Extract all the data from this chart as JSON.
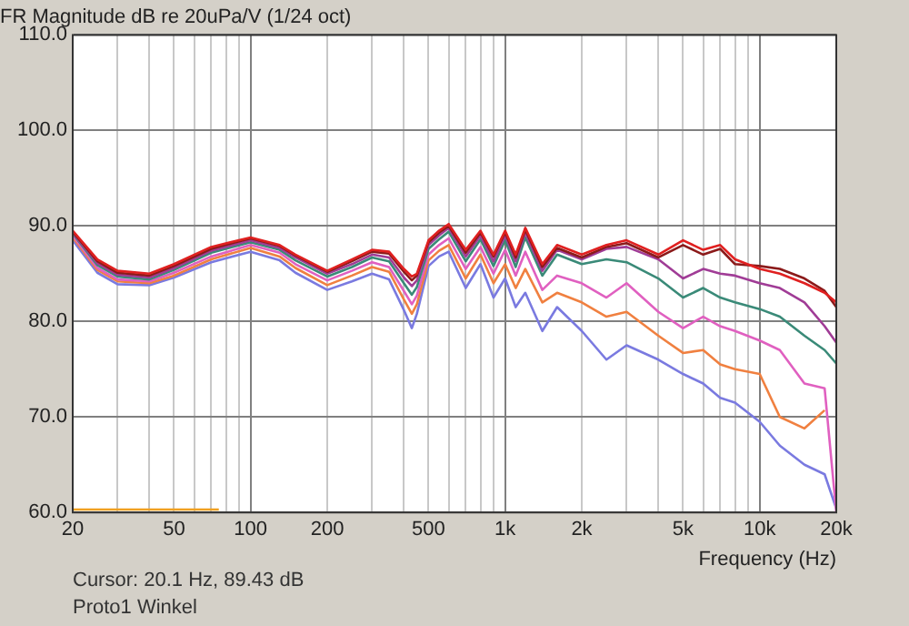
{
  "chart_data": {
    "type": "line",
    "title": "FR Magnitude dB re 20uPa/V (1/24 oct)",
    "xlabel": "Frequency (Hz)",
    "annotations": [
      "Cursor: 20.1 Hz, 89.43 dB",
      "Proto1 Winkel"
    ],
    "log": "x",
    "grid": true,
    "xlim": [
      20,
      20000
    ],
    "ylim": [
      60,
      110
    ],
    "xticks": [
      20,
      {
        "value": 30,
        "label": null
      },
      {
        "value": 40,
        "label": null
      },
      50,
      {
        "value": 60,
        "label": null
      },
      {
        "value": 70,
        "label": null
      },
      {
        "value": 80,
        "label": null
      },
      {
        "value": 90,
        "label": null
      },
      100,
      200,
      {
        "value": 300,
        "label": null
      },
      {
        "value": 400,
        "label": null
      },
      500,
      {
        "value": 600,
        "label": null
      },
      {
        "value": 700,
        "label": null
      },
      {
        "value": 800,
        "label": null
      },
      {
        "value": 900,
        "label": null
      },
      {
        "value": 1000,
        "label": "1k"
      },
      {
        "value": 2000,
        "label": "2k"
      },
      {
        "value": 3000,
        "label": null
      },
      {
        "value": 4000,
        "label": null
      },
      {
        "value": 5000,
        "label": "5k"
      },
      {
        "value": 6000,
        "label": null
      },
      {
        "value": 7000,
        "label": null
      },
      {
        "value": 8000,
        "label": null
      },
      {
        "value": 9000,
        "label": null
      },
      {
        "value": 10000,
        "label": "10k"
      },
      {
        "value": 20000,
        "label": "20k"
      }
    ],
    "yticks": [
      {
        "value": 60,
        "label": "60.0"
      },
      {
        "value": 70,
        "label": "70.0"
      },
      {
        "value": 80,
        "label": "80.0"
      },
      {
        "value": 90,
        "label": "90.0"
      },
      {
        "value": 100,
        "label": "100.0"
      },
      {
        "value": 110,
        "label": "110.0"
      }
    ],
    "x": [
      20,
      25,
      30,
      40,
      50,
      70,
      100,
      130,
      150,
      200,
      250,
      300,
      350,
      400,
      430,
      450,
      500,
      550,
      600,
      700,
      800,
      900,
      1000,
      1100,
      1200,
      1400,
      1600,
      2000,
      2500,
      3000,
      4000,
      5000,
      6000,
      7000,
      8000,
      10000,
      12000,
      15000,
      18000,
      20000
    ],
    "series": [
      {
        "color": "#e02020",
        "values": [
          89.5,
          86.5,
          85.3,
          85,
          86,
          87.8,
          88.8,
          88,
          87,
          85.3,
          86.5,
          87.5,
          87.3,
          85.5,
          84.7,
          85,
          88.5,
          89.5,
          90.2,
          87.5,
          89.5,
          87,
          89.5,
          87,
          89.8,
          86,
          88,
          87,
          88,
          88.5,
          87,
          88.5,
          87.5,
          88,
          86.5,
          85.5,
          85,
          84,
          83,
          82
        ]
      },
      {
        "color": "#8b1a1a",
        "values": [
          89.4,
          86.3,
          85.1,
          84.8,
          85.8,
          87.6,
          88.7,
          87.9,
          86.9,
          85.2,
          86.3,
          87.3,
          87.1,
          85.2,
          84.3,
          84.8,
          88.3,
          89.3,
          90,
          87.2,
          89.3,
          86.8,
          89.3,
          86.7,
          89.6,
          85.7,
          87.7,
          86.7,
          87.8,
          88.2,
          86.7,
          88,
          87,
          87.6,
          86,
          85.8,
          85.5,
          84.5,
          83.2,
          81.5
        ]
      },
      {
        "color": "#a03c96",
        "values": [
          89.3,
          86.1,
          84.9,
          84.6,
          85.6,
          87.4,
          88.5,
          87.7,
          86.7,
          85,
          86,
          87,
          86.7,
          84.6,
          83.7,
          84.3,
          88,
          89,
          89.8,
          86.8,
          89,
          86.3,
          89,
          86.3,
          89.3,
          85.3,
          87.5,
          86.5,
          87.6,
          87.8,
          86.5,
          84.5,
          85.5,
          85,
          84.8,
          84,
          83.5,
          82,
          79.5,
          77.8
        ]
      },
      {
        "color": "#3a8a78",
        "values": [
          89.2,
          85.9,
          84.7,
          84.4,
          85.4,
          87.2,
          88.3,
          87.5,
          86.4,
          84.7,
          85.7,
          86.7,
          86.3,
          84,
          82.8,
          83.6,
          87.6,
          88.6,
          89.4,
          86.3,
          88.6,
          85.8,
          88.5,
          85.7,
          88.8,
          84.8,
          87,
          86,
          86.5,
          86.2,
          84.5,
          82.5,
          83.5,
          82.5,
          82,
          81.3,
          80.5,
          78.5,
          77,
          75.6
        ]
      },
      {
        "color": "#e060c0",
        "values": [
          89,
          85.6,
          84.4,
          84.2,
          85.1,
          86.8,
          88,
          87.2,
          86,
          84.3,
          85.3,
          86.2,
          85.7,
          83.2,
          81.8,
          82.7,
          87,
          88,
          88.7,
          85.5,
          87.8,
          85,
          87.5,
          84.8,
          87.3,
          83.3,
          84.8,
          84,
          82.5,
          84,
          81,
          79.3,
          80.5,
          79.5,
          79,
          78,
          77,
          73.5,
          73,
          60
        ]
      },
      {
        "color": "#f08040",
        "values": [
          88.8,
          85.4,
          84.2,
          84,
          84.8,
          86.5,
          87.7,
          86.8,
          85.6,
          83.8,
          84.8,
          85.7,
          85.2,
          82.3,
          80.8,
          81.8,
          86.4,
          87.4,
          88,
          84.5,
          87,
          84,
          86,
          83.5,
          85.5,
          82,
          83,
          82,
          80.5,
          81,
          78.5,
          76.7,
          77,
          75.5,
          75,
          74.5,
          70,
          68.8,
          70.7,
          null
        ]
      },
      {
        "color": "#7a7ae0",
        "values": [
          88.5,
          85.1,
          83.9,
          83.8,
          84.6,
          86.2,
          87.3,
          86.4,
          85.1,
          83.3,
          84.2,
          85,
          84.4,
          81.2,
          79.3,
          80.8,
          85.8,
          86.8,
          87.3,
          83.5,
          86,
          82.5,
          84.5,
          81.5,
          83,
          79,
          81.5,
          79,
          76,
          77.5,
          76,
          74.5,
          73.5,
          72,
          71.5,
          69.5,
          67,
          65,
          64,
          60.4
        ]
      },
      {
        "color": "#f0a020",
        "x": [
          20,
          75
        ],
        "values": [
          60.3,
          60.3
        ]
      }
    ]
  }
}
